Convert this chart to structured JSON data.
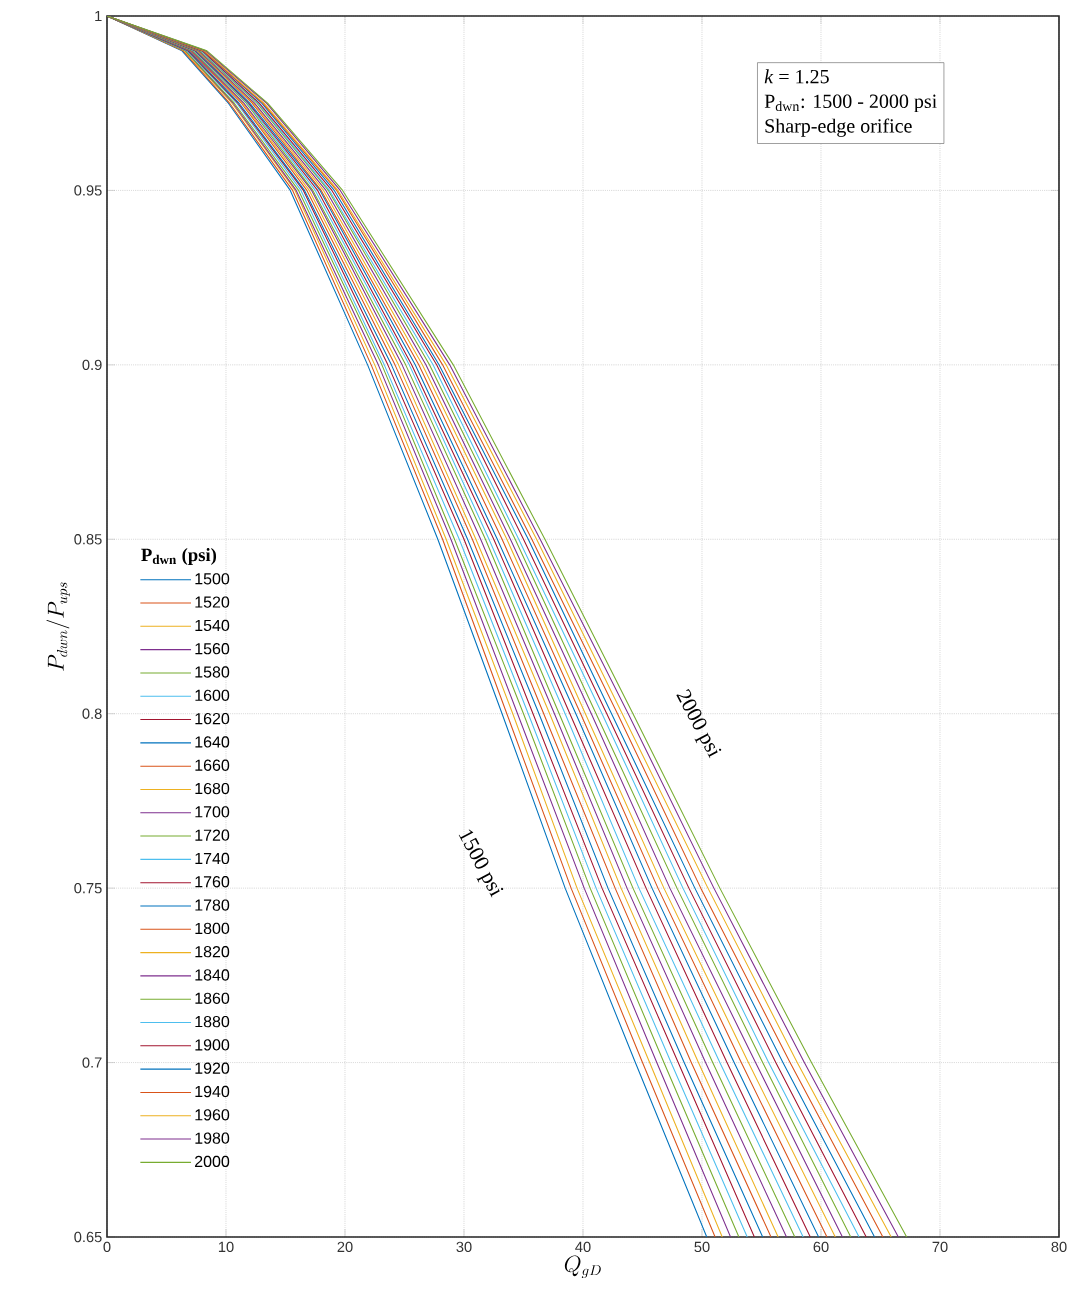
{
  "chart_data": {
    "type": "line",
    "xlabel": "Q_{gD}",
    "ylabel": "{P_{dwn}}/{P_{ups}}",
    "legend_title": "P$_{dwn}$ (psi)",
    "xlim": [
      0,
      80
    ],
    "ylim": [
      0.65,
      1
    ],
    "xticks": [
      0,
      10,
      20,
      30,
      40,
      50,
      60,
      70,
      80
    ],
    "yticks": [
      0.65,
      0.7,
      0.75,
      0.8,
      0.85,
      0.9,
      0.95,
      1
    ],
    "grid": true,
    "legend": "left",
    "line_style": "solid",
    "marker": "none",
    "annotations": [
      "*k* = 1.25",
      "P$_{dwn}$: 1500 - 2000 psi",
      "Sharp-edge orifice",
      "1500 psi",
      "2000 psi"
    ],
    "series": [
      {
        "name": "1500",
        "color": "#0072bd",
        "x": [
          0,
          6.3,
          10.2,
          15.4,
          21.9,
          27.8,
          33.2,
          38.5,
          44.4,
          50.4
        ],
        "values": [
          1,
          0.99,
          0.975,
          0.95,
          0.9,
          0.85,
          0.8,
          0.75,
          0.7,
          0.65
        ]
      },
      {
        "name": "1520",
        "color": "#d95319",
        "x": [
          0,
          6.4,
          10.3,
          15.6,
          22.2,
          28.2,
          33.6,
          39.0,
          45.0,
          51.1
        ],
        "values": [
          1,
          0.99,
          0.975,
          0.95,
          0.9,
          0.85,
          0.8,
          0.75,
          0.7,
          0.65
        ]
      },
      {
        "name": "1540",
        "color": "#edb120",
        "x": [
          0,
          6.5,
          10.5,
          15.8,
          22.5,
          28.5,
          34.1,
          39.5,
          45.6,
          51.7
        ],
        "values": [
          1,
          0.99,
          0.975,
          0.95,
          0.9,
          0.85,
          0.8,
          0.75,
          0.7,
          0.65
        ]
      },
      {
        "name": "1560",
        "color": "#7e2f8e",
        "x": [
          0,
          6.6,
          10.6,
          15.9,
          22.8,
          28.9,
          34.5,
          40.1,
          46.2,
          52.4
        ],
        "values": [
          1,
          0.99,
          0.975,
          0.95,
          0.9,
          0.85,
          0.8,
          0.75,
          0.7,
          0.65
        ]
      },
      {
        "name": "1580",
        "color": "#77ac30",
        "x": [
          0,
          6.6,
          10.7,
          16.1,
          23.1,
          29.2,
          35.0,
          40.6,
          46.8,
          53.1
        ],
        "values": [
          1,
          0.99,
          0.975,
          0.95,
          0.9,
          0.85,
          0.8,
          0.75,
          0.7,
          0.65
        ]
      },
      {
        "name": "1600",
        "color": "#4dbeee",
        "x": [
          0,
          6.7,
          10.9,
          16.3,
          23.3,
          29.6,
          35.4,
          41.1,
          47.4,
          53.8
        ],
        "values": [
          1,
          0.99,
          0.975,
          0.95,
          0.9,
          0.85,
          0.8,
          0.75,
          0.7,
          0.65
        ]
      },
      {
        "name": "1620",
        "color": "#a2142f",
        "x": [
          0,
          6.8,
          11.0,
          16.5,
          23.6,
          30.0,
          35.8,
          41.6,
          48.0,
          54.4
        ],
        "values": [
          1,
          0.99,
          0.975,
          0.95,
          0.9,
          0.85,
          0.8,
          0.75,
          0.7,
          0.65
        ]
      },
      {
        "name": "1640",
        "color": "#0072bd",
        "x": [
          0,
          6.9,
          11.1,
          16.6,
          23.9,
          30.3,
          36.3,
          42.1,
          48.5,
          55.1
        ],
        "values": [
          1,
          0.99,
          0.975,
          0.95,
          0.9,
          0.85,
          0.8,
          0.75,
          0.7,
          0.65
        ]
      },
      {
        "name": "1660",
        "color": "#d95319",
        "x": [
          0,
          7.0,
          11.3,
          16.8,
          24.2,
          30.7,
          36.7,
          42.7,
          49.1,
          55.8
        ],
        "values": [
          1,
          0.99,
          0.975,
          0.95,
          0.9,
          0.85,
          0.8,
          0.75,
          0.7,
          0.65
        ]
      },
      {
        "name": "1680",
        "color": "#edb120",
        "x": [
          0,
          7.1,
          11.4,
          17.0,
          24.5,
          31.0,
          37.2,
          43.2,
          49.7,
          56.4
        ],
        "values": [
          1,
          0.99,
          0.975,
          0.95,
          0.9,
          0.85,
          0.8,
          0.75,
          0.7,
          0.65
        ]
      },
      {
        "name": "1700",
        "color": "#7e2f8e",
        "x": [
          0,
          7.1,
          11.5,
          17.2,
          24.8,
          31.4,
          37.6,
          43.7,
          50.3,
          57.1
        ],
        "values": [
          1,
          0.99,
          0.975,
          0.95,
          0.9,
          0.85,
          0.8,
          0.75,
          0.7,
          0.65
        ]
      },
      {
        "name": "1720",
        "color": "#77ac30",
        "x": [
          0,
          7.2,
          11.7,
          17.3,
          25.1,
          31.8,
          38.0,
          44.2,
          50.9,
          57.8
        ],
        "values": [
          1,
          0.99,
          0.975,
          0.95,
          0.9,
          0.85,
          0.8,
          0.75,
          0.7,
          0.65
        ]
      },
      {
        "name": "1740",
        "color": "#4dbeee",
        "x": [
          0,
          7.3,
          11.8,
          17.5,
          25.4,
          32.1,
          38.5,
          44.7,
          51.5,
          58.5
        ],
        "values": [
          1,
          0.99,
          0.975,
          0.95,
          0.9,
          0.85,
          0.8,
          0.75,
          0.7,
          0.65
        ]
      },
      {
        "name": "1760",
        "color": "#a2142f",
        "x": [
          0,
          7.4,
          11.9,
          17.7,
          25.6,
          32.5,
          38.9,
          45.3,
          52.1,
          59.1
        ],
        "values": [
          1,
          0.99,
          0.975,
          0.95,
          0.9,
          0.85,
          0.8,
          0.75,
          0.7,
          0.65
        ]
      },
      {
        "name": "1780",
        "color": "#0072bd",
        "x": [
          0,
          7.5,
          12.0,
          17.9,
          25.9,
          32.8,
          39.4,
          45.8,
          52.7,
          59.8
        ],
        "values": [
          1,
          0.99,
          0.975,
          0.95,
          0.9,
          0.85,
          0.8,
          0.75,
          0.7,
          0.65
        ]
      },
      {
        "name": "1800",
        "color": "#d95319",
        "x": [
          0,
          7.6,
          12.2,
          18.0,
          26.2,
          33.2,
          39.8,
          46.3,
          53.3,
          60.5
        ],
        "values": [
          1,
          0.99,
          0.975,
          0.95,
          0.9,
          0.85,
          0.8,
          0.75,
          0.7,
          0.65
        ]
      },
      {
        "name": "1820",
        "color": "#edb120",
        "x": [
          0,
          7.6,
          12.3,
          18.2,
          26.5,
          33.6,
          40.2,
          46.8,
          53.9,
          61.2
        ],
        "values": [
          1,
          0.99,
          0.975,
          0.95,
          0.9,
          0.85,
          0.8,
          0.75,
          0.7,
          0.65
        ]
      },
      {
        "name": "1840",
        "color": "#7e2f8e",
        "x": [
          0,
          7.7,
          12.4,
          18.4,
          26.8,
          33.9,
          40.7,
          47.3,
          54.5,
          61.8
        ],
        "values": [
          1,
          0.99,
          0.975,
          0.95,
          0.9,
          0.85,
          0.8,
          0.75,
          0.7,
          0.65
        ]
      },
      {
        "name": "1860",
        "color": "#77ac30",
        "x": [
          0,
          7.8,
          12.6,
          18.6,
          27.1,
          34.3,
          41.1,
          47.9,
          55.1,
          62.5
        ],
        "values": [
          1,
          0.99,
          0.975,
          0.95,
          0.9,
          0.85,
          0.8,
          0.75,
          0.7,
          0.65
        ]
      },
      {
        "name": "1880",
        "color": "#4dbeee",
        "x": [
          0,
          7.9,
          12.7,
          18.7,
          27.4,
          34.6,
          41.6,
          48.4,
          55.6,
          63.2
        ],
        "values": [
          1,
          0.99,
          0.975,
          0.95,
          0.9,
          0.85,
          0.8,
          0.75,
          0.7,
          0.65
        ]
      },
      {
        "name": "1900",
        "color": "#a2142f",
        "x": [
          0,
          8.0,
          12.8,
          18.9,
          27.7,
          35.0,
          42.0,
          48.9,
          56.2,
          63.8
        ],
        "values": [
          1,
          0.99,
          0.975,
          0.95,
          0.9,
          0.85,
          0.8,
          0.75,
          0.7,
          0.65
        ]
      },
      {
        "name": "1920",
        "color": "#0072bd",
        "x": [
          0,
          8.1,
          13.0,
          19.1,
          27.9,
          35.4,
          42.4,
          49.4,
          56.8,
          64.5
        ],
        "values": [
          1,
          0.99,
          0.975,
          0.95,
          0.9,
          0.85,
          0.8,
          0.75,
          0.7,
          0.65
        ]
      },
      {
        "name": "1940",
        "color": "#d95319",
        "x": [
          0,
          8.1,
          13.1,
          19.3,
          28.2,
          35.7,
          42.9,
          49.9,
          57.4,
          65.2
        ],
        "values": [
          1,
          0.99,
          0.975,
          0.95,
          0.9,
          0.85,
          0.8,
          0.75,
          0.7,
          0.65
        ]
      },
      {
        "name": "1960",
        "color": "#edb120",
        "x": [
          0,
          8.2,
          13.2,
          19.4,
          28.5,
          36.1,
          43.3,
          50.5,
          58.0,
          65.9
        ],
        "values": [
          1,
          0.99,
          0.975,
          0.95,
          0.9,
          0.85,
          0.8,
          0.75,
          0.7,
          0.65
        ]
      },
      {
        "name": "1980",
        "color": "#7e2f8e",
        "x": [
          0,
          8.3,
          13.4,
          19.6,
          28.8,
          36.4,
          43.8,
          51.0,
          58.6,
          66.5
        ],
        "values": [
          1,
          0.99,
          0.975,
          0.95,
          0.9,
          0.85,
          0.8,
          0.75,
          0.7,
          0.65
        ]
      },
      {
        "name": "2000",
        "color": "#77ac30",
        "x": [
          0,
          8.4,
          13.5,
          19.8,
          29.1,
          36.8,
          44.2,
          51.5,
          59.2,
          67.2
        ],
        "values": [
          1,
          0.99,
          0.975,
          0.95,
          0.9,
          0.85,
          0.8,
          0.75,
          0.7,
          0.65
        ]
      }
    ]
  }
}
